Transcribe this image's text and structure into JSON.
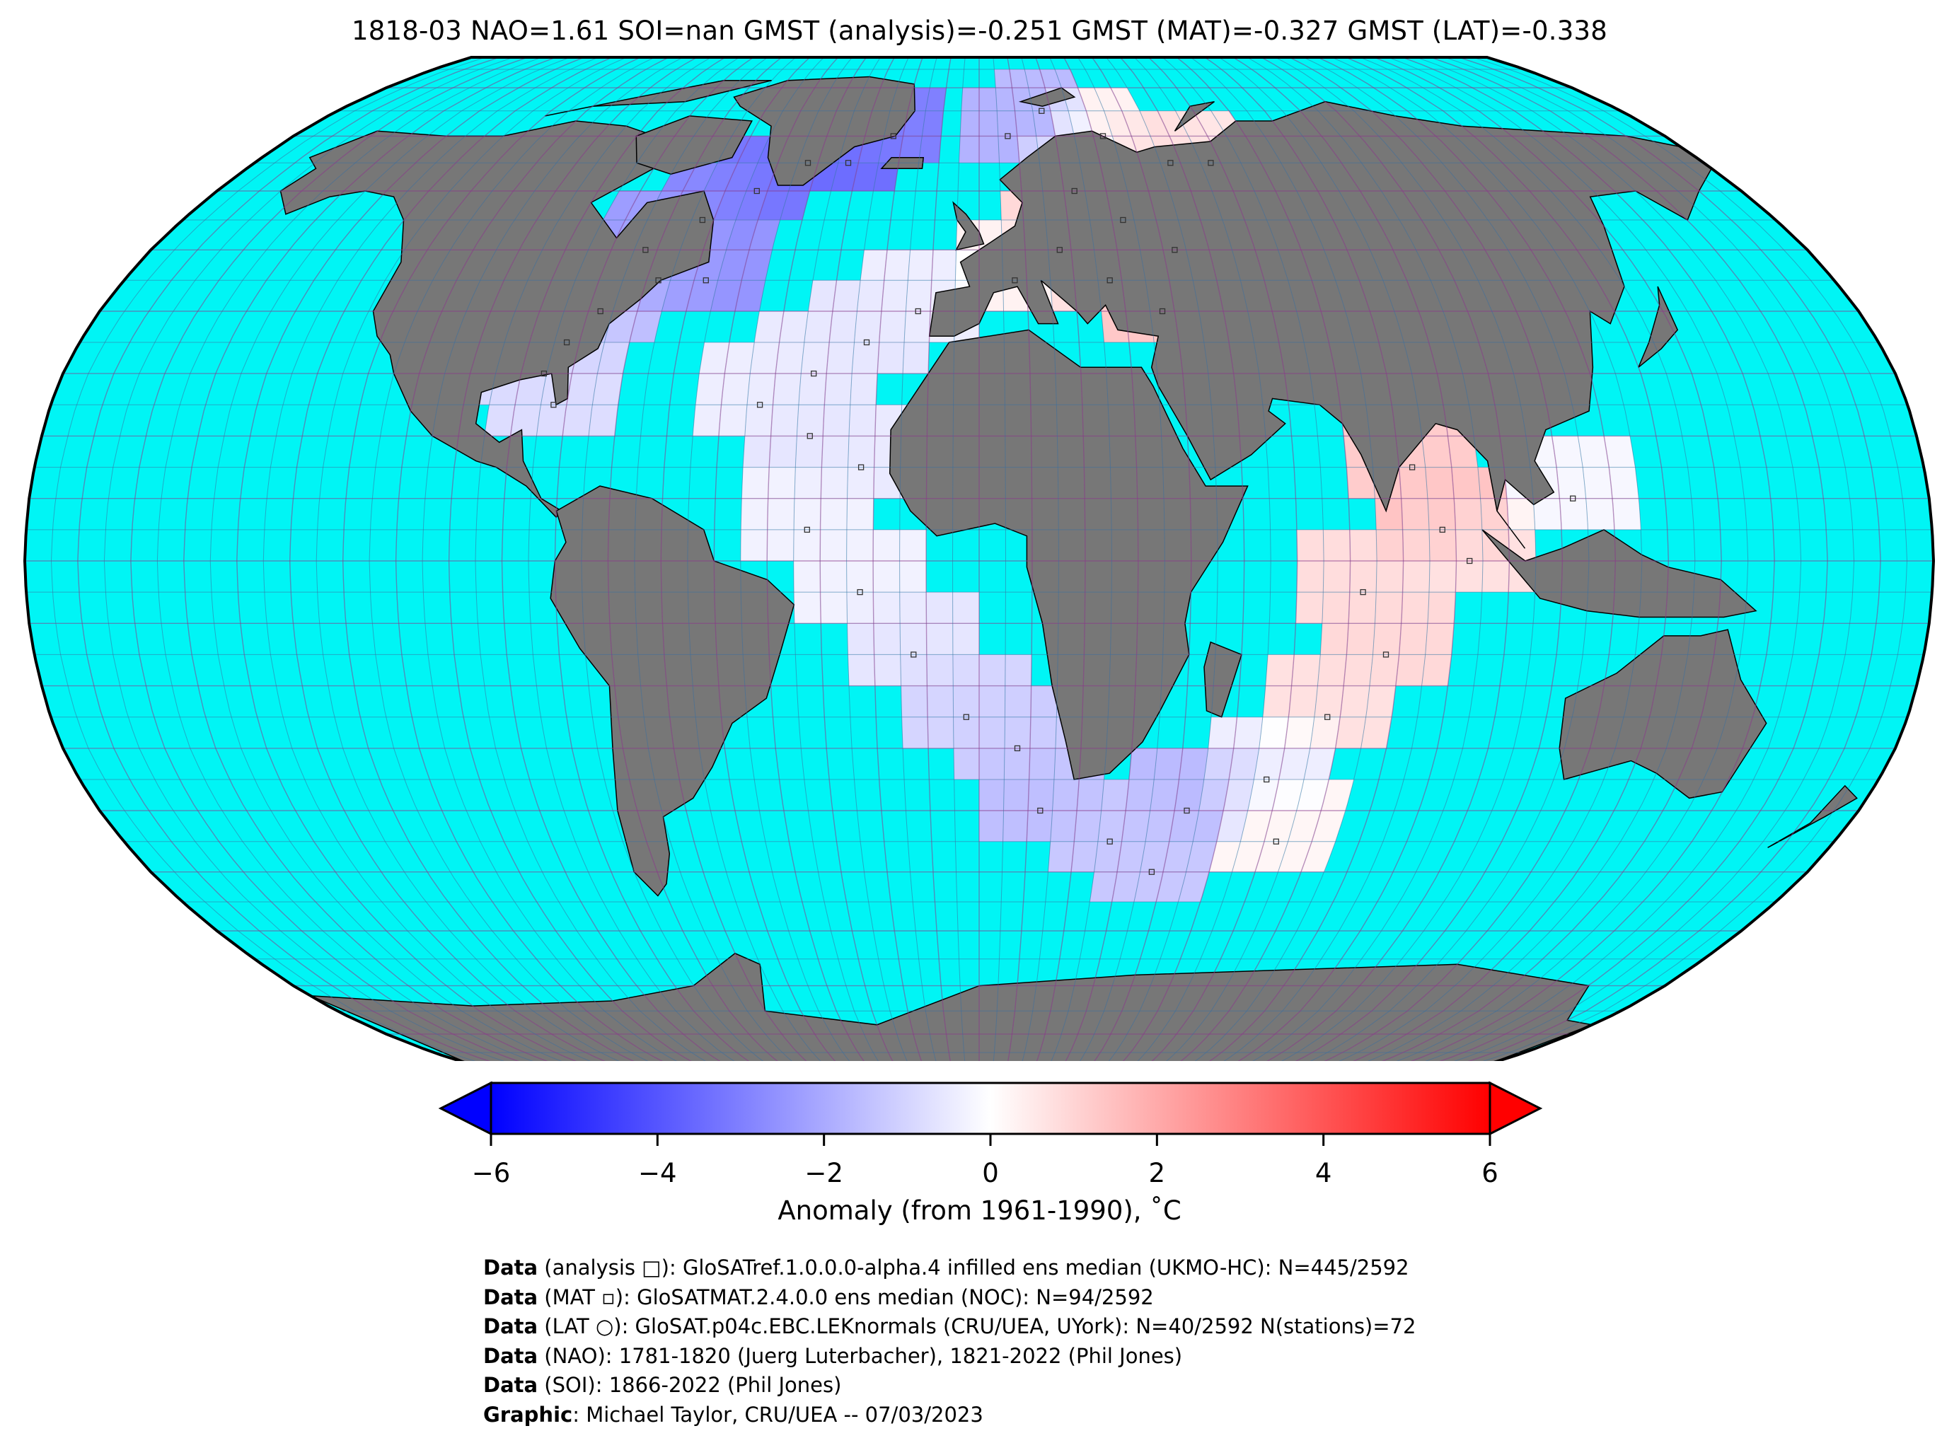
{
  "title": "1818-03 NAO=1.61 SOI=nan GMST (analysis)=-0.251 GMST (MAT)=-0.327 GMST (LAT)=-0.338",
  "colors": {
    "ocean": "#00f5f5",
    "land": "#777777",
    "grid_minor": "#3b6fa0",
    "grid_major": "#8a3a8a",
    "cold": "#0000ff",
    "neutral": "#ffffff",
    "warm": "#ff0000"
  },
  "colorbar": {
    "label": "Anomaly (from 1961-1990), ˚C",
    "ticks": [
      "−6",
      "−4",
      "−2",
      "0",
      "2",
      "4",
      "6"
    ],
    "vmin": -6,
    "vmax": 6,
    "extend": "both"
  },
  "anomaly_cells": [
    {
      "lon": -55,
      "lat": 62.5,
      "v": -3.2
    },
    {
      "lon": -45,
      "lat": 67.5,
      "v": -3.5
    },
    {
      "lon": -35,
      "lat": 67.5,
      "v": -3.4
    },
    {
      "lon": -25,
      "lat": 72.5,
      "v": -3.0
    },
    {
      "lon": -65,
      "lat": 57.5,
      "v": -2.8
    },
    {
      "lon": -75,
      "lat": 52.5,
      "v": -2.3
    },
    {
      "lon": -70,
      "lat": 47.5,
      "v": -2.0
    },
    {
      "lon": -80,
      "lat": 42.5,
      "v": -1.5
    },
    {
      "lon": -85,
      "lat": 37.5,
      "v": -1.2
    },
    {
      "lon": -88,
      "lat": 32.5,
      "v": -0.9
    },
    {
      "lon": -85,
      "lat": 27.5,
      "v": -0.8
    },
    {
      "lon": -60,
      "lat": 47.5,
      "v": -2.5
    },
    {
      "lon": 5,
      "lat": 72.5,
      "v": -1.8
    },
    {
      "lon": 15,
      "lat": 77.5,
      "v": -1.6
    },
    {
      "lon": 30,
      "lat": 72.5,
      "v": 0.3
    },
    {
      "lon": 45,
      "lat": 67.5,
      "v": 0.8
    },
    {
      "lon": 55,
      "lat": 67.5,
      "v": 0.6
    },
    {
      "lon": 20,
      "lat": 62.5,
      "v": -0.3
    },
    {
      "lon": 30,
      "lat": 57.5,
      "v": 1.2
    },
    {
      "lon": 40,
      "lat": 52.5,
      "v": 1.4
    },
    {
      "lon": 25,
      "lat": 47.5,
      "v": 1.1
    },
    {
      "lon": 35,
      "lat": 42.5,
      "v": 1.3
    },
    {
      "lon": 15,
      "lat": 52.5,
      "v": 0.9
    },
    {
      "lon": 5,
      "lat": 47.5,
      "v": 0.3
    },
    {
      "lon": -15,
      "lat": 42.5,
      "v": -0.4
    },
    {
      "lon": -25,
      "lat": 37.5,
      "v": -0.6
    },
    {
      "lon": -35,
      "lat": 32.5,
      "v": -0.5
    },
    {
      "lon": -45,
      "lat": 27.5,
      "v": -0.4
    },
    {
      "lon": -35,
      "lat": 22.5,
      "v": -0.6
    },
    {
      "lon": -25,
      "lat": 17.5,
      "v": -0.5
    },
    {
      "lon": -35,
      "lat": 7.5,
      "v": -0.3
    },
    {
      "lon": -25,
      "lat": -2.5,
      "v": -0.3
    },
    {
      "lon": -15,
      "lat": -12.5,
      "v": -0.6
    },
    {
      "lon": -5,
      "lat": -22.5,
      "v": -1.0
    },
    {
      "lon": 5,
      "lat": -27.5,
      "v": -1.2
    },
    {
      "lon": 10,
      "lat": -37.5,
      "v": -1.5
    },
    {
      "lon": 25,
      "lat": -42.5,
      "v": -1.3
    },
    {
      "lon": 40,
      "lat": -37.5,
      "v": -1.6
    },
    {
      "lon": 55,
      "lat": -32.5,
      "v": -0.4
    },
    {
      "lon": 65,
      "lat": -22.5,
      "v": 0.7
    },
    {
      "lon": 75,
      "lat": -12.5,
      "v": 0.9
    },
    {
      "lon": 70,
      "lat": -2.5,
      "v": 0.8
    },
    {
      "lon": 85,
      "lat": 7.5,
      "v": 1.4
    },
    {
      "lon": 80,
      "lat": 17.5,
      "v": 1.2
    },
    {
      "lon": 110,
      "lat": 12.5,
      "v": -0.2
    },
    {
      "lon": 90,
      "lat": 2.5,
      "v": 0.7
    },
    {
      "lon": 60,
      "lat": -42.5,
      "v": 0.2
    },
    {
      "lon": 35,
      "lat": -47.5,
      "v": -1.3
    }
  ]
}
